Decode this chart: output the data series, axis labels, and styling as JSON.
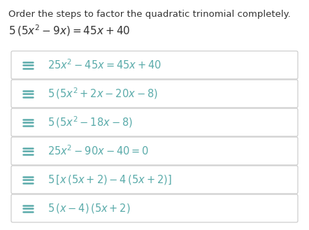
{
  "title_line1": "Order the steps to factor the quadratic trinomial completely.",
  "bg_color": "#ffffff",
  "box_edge_color": "#c8c8c8",
  "box_fill_color": "#ffffff",
  "math_color": "#5aabaa",
  "title_color": "#333333",
  "title_fontsize": 9.5,
  "step_fontsize": 10.5,
  "title_math_fontsize": 11.0,
  "steps_latex": [
    "$25x^2 - 45x = 45x + 40$",
    "$5\\,(5x^2 + 2x - 20x - 8)$",
    "$5\\,(5x^2 - 18x - 8)$",
    "$25x^2 - 90x - 40 = 0$",
    "$5\\,[x\\,(5x + 2) - 4\\,(5x + 2)]$",
    "$5\\,(x - 4)\\,(5x + 2)$"
  ]
}
